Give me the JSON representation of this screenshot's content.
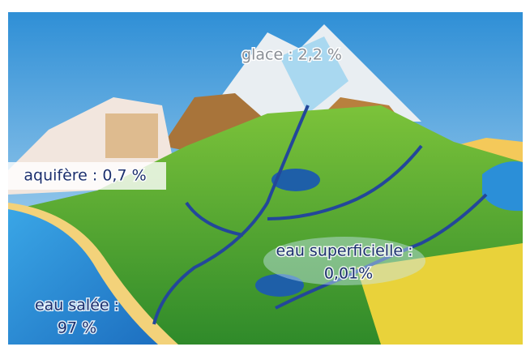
{
  "labels": {
    "ice": [
      "glace : 2,2 %"
    ],
    "aquifer": [
      "aquifère : 0,7 %"
    ],
    "surface": [
      "eau superficielle :",
      "0,01%"
    ],
    "salt": [
      "eau salée :",
      "97 %"
    ]
  }
}
